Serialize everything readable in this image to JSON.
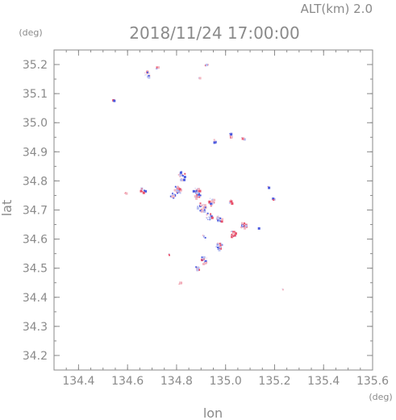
{
  "header": {
    "alt_label": "ALT(km)  2.0",
    "datetime": "2018/11/24 17:00:00"
  },
  "chart_data": {
    "type": "scatter",
    "title": "2018/11/24 17:00:00",
    "subtitle": "ALT(km)  2.0",
    "xlabel": "lon",
    "ylabel": "lat",
    "x_unit": "(deg)",
    "y_unit": "(deg)",
    "xlim": [
      134.3,
      135.6
    ],
    "ylim": [
      34.15,
      35.25
    ],
    "x_ticks": [
      134.4,
      134.6,
      134.8,
      135.0,
      135.2,
      135.4,
      135.6
    ],
    "x_tick_labels": [
      "134.4",
      "134.6",
      "134.8",
      "135.0",
      "135.2",
      "135.4",
      "135.6"
    ],
    "y_ticks": [
      34.2,
      34.3,
      34.4,
      34.5,
      34.6,
      34.7,
      34.8,
      34.9,
      35.0,
      35.1,
      35.2
    ],
    "y_tick_labels": [
      "34.2",
      "34.3",
      "34.4",
      "34.5",
      "34.6",
      "34.7",
      "34.8",
      "34.9",
      "35.0",
      "35.1",
      "35.2"
    ],
    "grid": false,
    "colors": {
      "positive": "#e8506a",
      "negative": "#4a5ae0",
      "axis": "#8a8a8a"
    },
    "clusters": [
      {
        "lon": 134.68,
        "lat": 35.17,
        "spread": 0.012,
        "n": 14
      },
      {
        "lon": 134.72,
        "lat": 35.19,
        "spread": 0.006,
        "n": 6
      },
      {
        "lon": 134.92,
        "lat": 35.2,
        "spread": 0.005,
        "n": 3
      },
      {
        "lon": 134.89,
        "lat": 35.16,
        "spread": 0.004,
        "n": 2
      },
      {
        "lon": 134.54,
        "lat": 35.08,
        "spread": 0.003,
        "n": 2
      },
      {
        "lon": 135.02,
        "lat": 34.96,
        "spread": 0.007,
        "n": 8
      },
      {
        "lon": 135.07,
        "lat": 34.95,
        "spread": 0.006,
        "n": 6
      },
      {
        "lon": 134.95,
        "lat": 34.94,
        "spread": 0.005,
        "n": 5
      },
      {
        "lon": 134.82,
        "lat": 34.82,
        "spread": 0.015,
        "n": 18
      },
      {
        "lon": 134.8,
        "lat": 34.77,
        "spread": 0.015,
        "n": 22
      },
      {
        "lon": 134.66,
        "lat": 34.77,
        "spread": 0.01,
        "n": 12
      },
      {
        "lon": 134.59,
        "lat": 34.76,
        "spread": 0.004,
        "n": 3
      },
      {
        "lon": 134.78,
        "lat": 34.75,
        "spread": 0.01,
        "n": 10
      },
      {
        "lon": 134.88,
        "lat": 34.76,
        "spread": 0.018,
        "n": 32
      },
      {
        "lon": 134.9,
        "lat": 34.71,
        "spread": 0.018,
        "n": 28
      },
      {
        "lon": 134.94,
        "lat": 34.73,
        "spread": 0.014,
        "n": 20
      },
      {
        "lon": 135.02,
        "lat": 34.73,
        "spread": 0.008,
        "n": 10
      },
      {
        "lon": 134.93,
        "lat": 34.68,
        "spread": 0.013,
        "n": 16
      },
      {
        "lon": 134.97,
        "lat": 34.67,
        "spread": 0.012,
        "n": 16
      },
      {
        "lon": 135.07,
        "lat": 34.65,
        "spread": 0.012,
        "n": 18
      },
      {
        "lon": 135.03,
        "lat": 34.62,
        "spread": 0.013,
        "n": 18
      },
      {
        "lon": 134.97,
        "lat": 34.58,
        "spread": 0.014,
        "n": 18
      },
      {
        "lon": 134.91,
        "lat": 34.53,
        "spread": 0.014,
        "n": 18
      },
      {
        "lon": 134.88,
        "lat": 34.5,
        "spread": 0.01,
        "n": 12
      },
      {
        "lon": 134.77,
        "lat": 34.55,
        "spread": 0.005,
        "n": 4
      },
      {
        "lon": 134.81,
        "lat": 34.45,
        "spread": 0.004,
        "n": 3
      },
      {
        "lon": 135.17,
        "lat": 34.78,
        "spread": 0.004,
        "n": 3
      },
      {
        "lon": 135.19,
        "lat": 34.74,
        "spread": 0.005,
        "n": 4
      },
      {
        "lon": 134.91,
        "lat": 34.61,
        "spread": 0.006,
        "n": 5
      },
      {
        "lon": 135.13,
        "lat": 34.64,
        "spread": 0.004,
        "n": 2
      },
      {
        "lon": 135.23,
        "lat": 34.43,
        "spread": 0.002,
        "n": 2
      }
    ]
  }
}
